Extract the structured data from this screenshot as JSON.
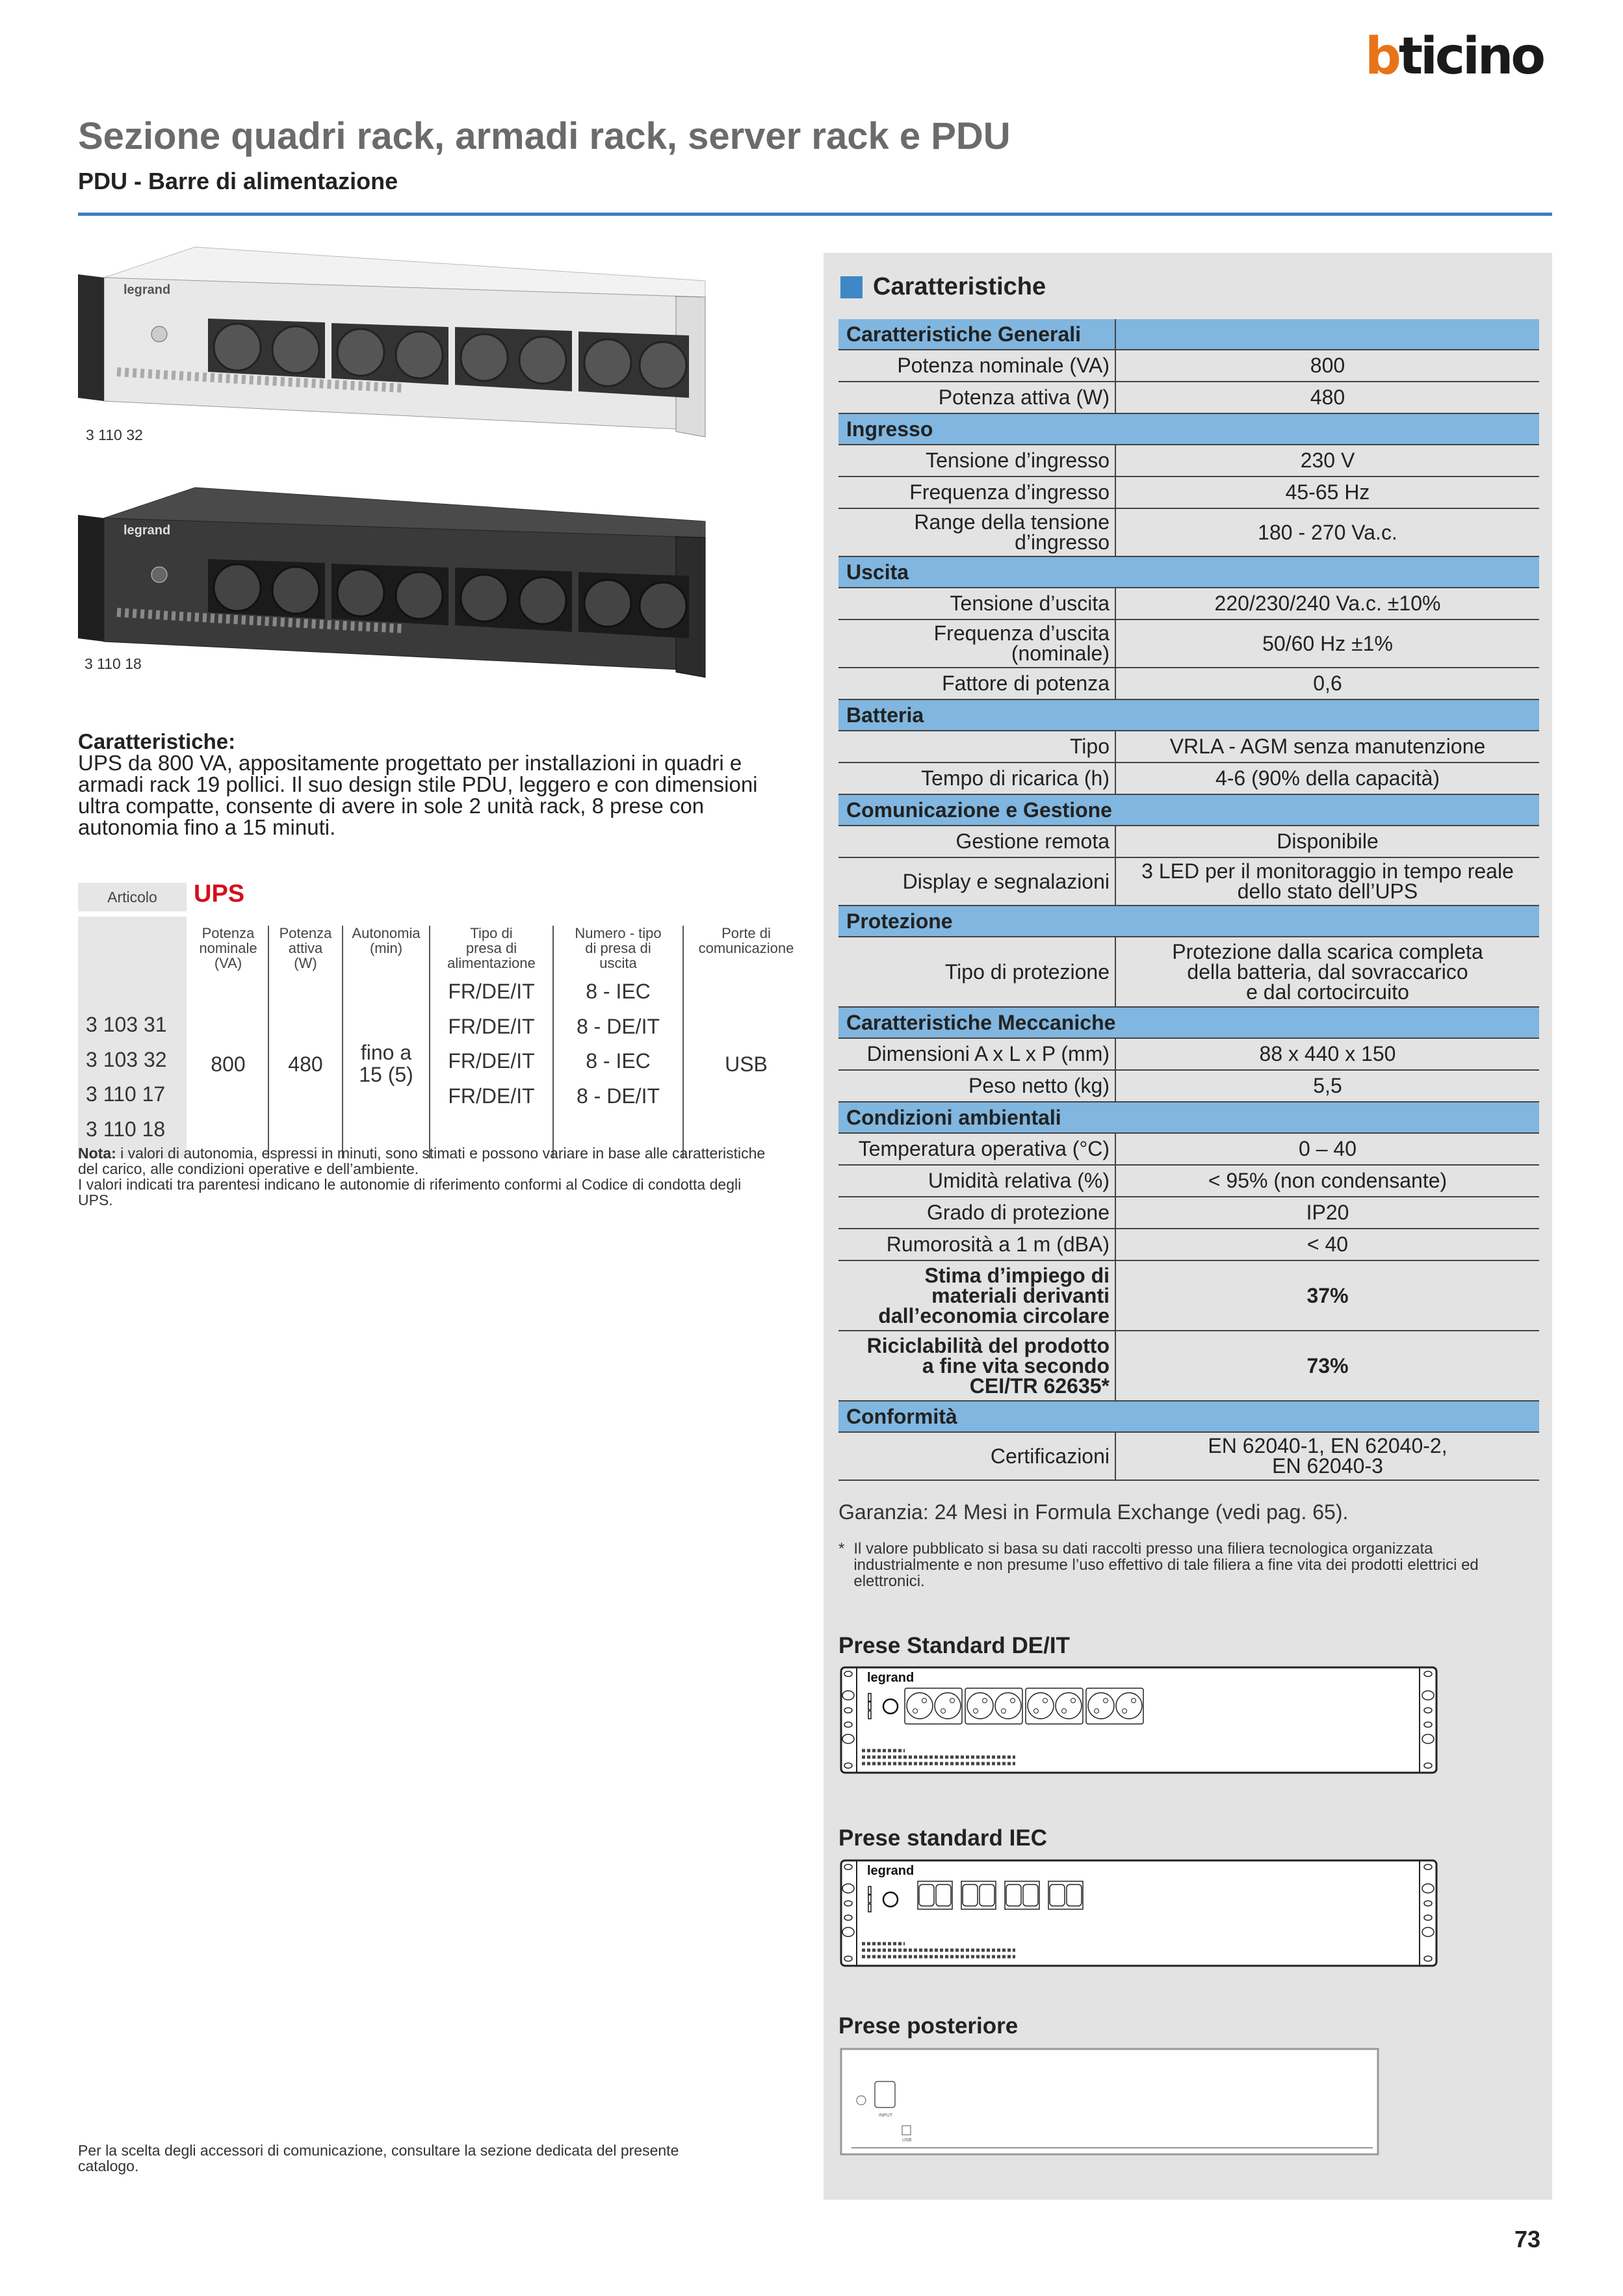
{
  "brand": {
    "logo_text_b": "b",
    "logo_text_rest": "ticino",
    "accent": "#e8731a"
  },
  "header": {
    "title": "Sezione quadri rack, armadi rack, server rack e PDU",
    "subtitle": "PDU - Barre di alimentazione",
    "rule_color": "#3d7fbf"
  },
  "products": [
    {
      "code": "3 110 32",
      "finish": "white"
    },
    {
      "code": "3 110 18",
      "finish": "black"
    }
  ],
  "description": {
    "heading": "Caratteristiche:",
    "text": "UPS da 800 VA, appositamente progettato per installazioni in quadri e armadi rack 19 pollici. Il suo design stile PDU, leggero e con dimensioni ultra compatte, consente di avere in sole 2 unità rack, 8 prese con autonomia fino a 15 minuti."
  },
  "ups_table": {
    "articolo_label": "Articolo",
    "product_name": "UPS",
    "product_color": "#d40f1e",
    "columns": [
      "Potenza\nnominale\n(VA)",
      "Potenza\nattiva\n(W)",
      "Autonomia\n(min)",
      "Tipo di\npresa di\nalimentazione",
      "Numero - tipo\ndi presa di\nuscita",
      "Porte di\ncomunicazione"
    ],
    "codes": [
      "3 103 31",
      "3 103 32",
      "3 110 17",
      "3 110 18"
    ],
    "potenza_nominale": "800",
    "potenza_attiva": "480",
    "autonomia": "fino a\n15 (5)",
    "tipo_presa": [
      "FR/DE/IT",
      "FR/DE/IT",
      "FR/DE/IT",
      "FR/DE/IT"
    ],
    "numero_tipo": [
      "8 - IEC",
      "8 - DE/IT",
      "8 - IEC",
      "8 - DE/IT"
    ],
    "porte": "USB"
  },
  "nota": {
    "label": "Nota:",
    "text": " i valori di autonomia, espressi in minuti, sono stimati e possono variare in base alle caratteristiche del carico, alle condizioni operative e dell’ambiente.",
    "text2": "I valori indicati tra parentesi indicano le autonomie di riferimento conformi al Codice di condotta degli UPS."
  },
  "bottom_note": "Per la scelta degli accessori di comunicazione, consultare la sezione dedicata del presente catalogo.",
  "specs": {
    "heading": "Caratteristiche",
    "section_color": "#80b6df",
    "sections": [
      {
        "title": "Caratteristiche Generali",
        "split": true,
        "rows": [
          {
            "label": "Potenza nominale (VA)",
            "value": "800"
          },
          {
            "label": "Potenza attiva (W)",
            "value": "480"
          }
        ]
      },
      {
        "title": "Ingresso",
        "rows": [
          {
            "label": "Tensione d’ingresso",
            "value": "230 V"
          },
          {
            "label": "Frequenza d’ingresso",
            "value": "45-65 Hz"
          },
          {
            "label": "Range della tensione\nd’ingresso",
            "value": "180 - 270 Va.c."
          }
        ]
      },
      {
        "title": "Uscita",
        "rows": [
          {
            "label": "Tensione d’uscita",
            "value": "220/230/240 Va.c. ±10%"
          },
          {
            "label": "Frequenza d’uscita\n(nominale)",
            "value": "50/60 Hz ±1%"
          },
          {
            "label": "Fattore di potenza",
            "value": "0,6"
          }
        ]
      },
      {
        "title": "Batteria",
        "rows": [
          {
            "label": "Tipo",
            "value": "VRLA - AGM senza manutenzione"
          },
          {
            "label": "Tempo di ricarica (h)",
            "value": "4-6 (90% della capacità)"
          }
        ]
      },
      {
        "title": "Comunicazione e Gestione",
        "rows": [
          {
            "label": "Gestione remota",
            "value": "Disponibile"
          },
          {
            "label": "Display e segnalazioni",
            "value": "3 LED per il monitoraggio in tempo reale\ndello stato dell’UPS"
          }
        ]
      },
      {
        "title": "Protezione",
        "rows": [
          {
            "label": "Tipo di protezione",
            "value": "Protezione dalla scarica completa\ndella batteria, dal sovraccarico\ne dal cortocircuito"
          }
        ]
      },
      {
        "title": "Caratteristiche Meccaniche",
        "rows": [
          {
            "label": "Dimensioni  A x L x P (mm)",
            "value": "88 x 440 x 150"
          },
          {
            "label": "Peso netto (kg)",
            "value": "5,5"
          }
        ]
      },
      {
        "title": "Condizioni ambientali",
        "rows": [
          {
            "label": "Temperatura operativa (°C)",
            "value": "0 – 40"
          },
          {
            "label": "Umidità relativa (%)",
            "value": "< 95% (non condensante)"
          },
          {
            "label": "Grado di protezione",
            "value": "IP20"
          },
          {
            "label": "Rumorosità a 1 m (dBA)",
            "value": "< 40"
          },
          {
            "label": "Stima d’impiego di\nmateriali derivanti\ndall’economia circolare",
            "value": "37%",
            "bold": true
          },
          {
            "label": "Riciclabilità del prodotto\na fine vita secondo\nCEI/TR 62635*",
            "value": "73%",
            "bold": true
          }
        ]
      },
      {
        "title": "Conformità",
        "rows": [
          {
            "label": "Certificazioni",
            "value": "EN 62040-1, EN 62040-2,\nEN 62040-3"
          }
        ]
      }
    ]
  },
  "garanzia": "Garanzia: 24 Mesi in Formula Exchange (vedi pag. 65).",
  "footnote": {
    "mark": "*",
    "text": "Il valore pubblicato si basa su dati raccolti presso una filiera tecnologica organizzata industrialmente e non presume l’uso effettivo di tale filiera a fine vita dei prodotti elettrici ed elettronici."
  },
  "drawings": {
    "de_it": {
      "title": "Prese Standard DE/IT",
      "brand": "legrand"
    },
    "iec": {
      "title": "Prese standard IEC",
      "brand": "legrand"
    },
    "rear": {
      "title": "Prese posteriore",
      "input_label": "INPUT",
      "usb_label": "USB"
    }
  },
  "page_number": "73"
}
